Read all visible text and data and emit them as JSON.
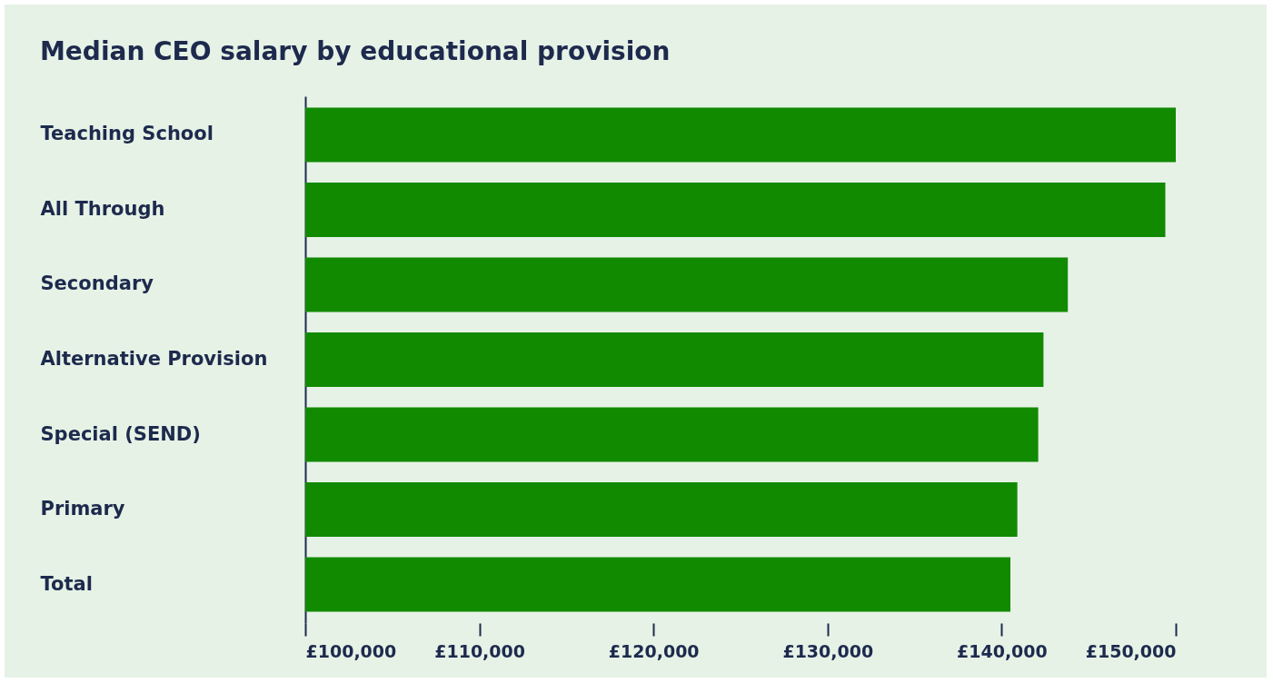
{
  "chart_data": {
    "type": "bar",
    "orientation": "horizontal",
    "title": "Median CEO salary by educational provision",
    "categories": [
      "Teaching School",
      "All Through",
      "Secondary",
      "Alternative Provision",
      "Special (SEND)",
      "Primary",
      "Total"
    ],
    "values": [
      150000,
      149400,
      143800,
      142400,
      142100,
      140900,
      140500
    ],
    "color": "#118a00",
    "xlim": [
      100000,
      150000
    ],
    "xticks": [
      {
        "value": 100000,
        "label": "£100,000"
      },
      {
        "value": 110000,
        "label": "£110,000"
      },
      {
        "value": 120000,
        "label": "£120,000"
      },
      {
        "value": 130000,
        "label": "£130,000"
      },
      {
        "value": 140000,
        "label": "£140,000"
      },
      {
        "value": 150000,
        "label": "£150,000"
      }
    ],
    "grid": false
  }
}
